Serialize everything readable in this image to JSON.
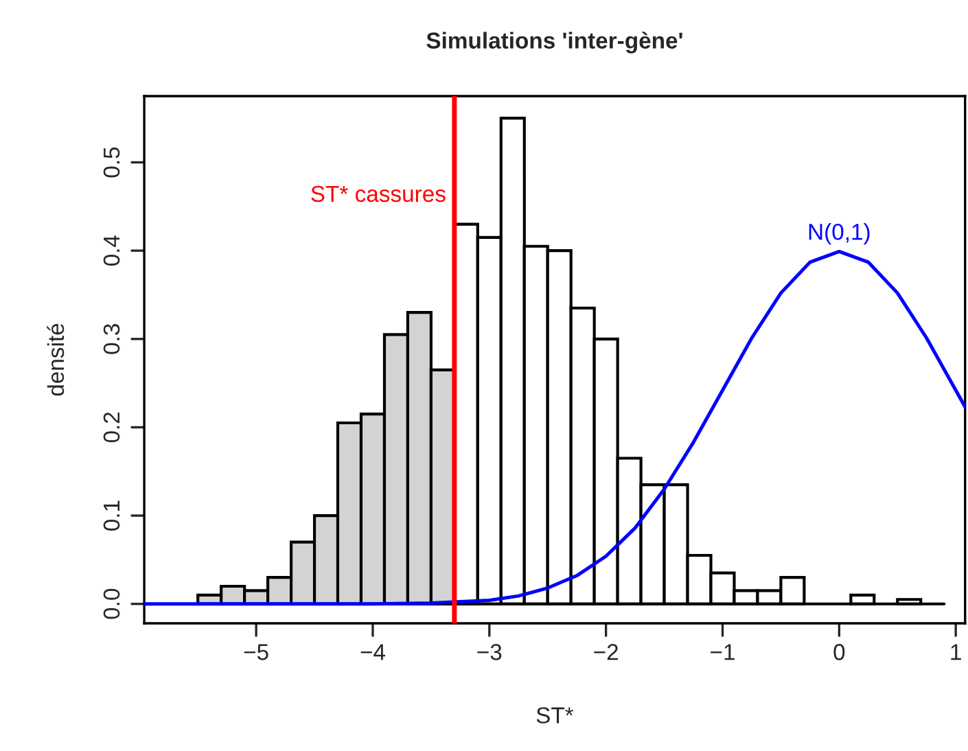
{
  "chart_data": {
    "type": "histogram",
    "title": "Simulations 'inter-gène'",
    "xlabel": "ST*",
    "ylabel": "densité",
    "series": [
      {
        "bins": [
          -5.5,
          -5.3,
          -5.1,
          -4.9,
          -4.7,
          -4.5,
          -4.3,
          -4.1,
          -3.9,
          -3.7,
          -3.5,
          -3.3,
          -3.1,
          -2.9,
          -2.7,
          -2.5,
          -2.3,
          -2.1,
          -1.9,
          -1.7,
          -1.5,
          -1.3,
          -1.1,
          -0.9,
          -0.7,
          -0.5,
          -0.3,
          -0.1,
          0.1,
          0.3,
          0.5,
          0.7,
          0.9
        ],
        "values": [
          0.01,
          0.02,
          0.015,
          0.03,
          0.07,
          0.1,
          0.205,
          0.215,
          0.305,
          0.33,
          0.265,
          0.43,
          0.415,
          0.55,
          0.405,
          0.4,
          0.335,
          0.3,
          0.165,
          0.135,
          0.135,
          0.055,
          0.035,
          0.015,
          0.015,
          0.03,
          0,
          0,
          0.01,
          0,
          0.005,
          0
        ],
        "colors": [
          "#d3d3d3",
          "#d3d3d3",
          "#d3d3d3",
          "#d3d3d3",
          "#d3d3d3",
          "#d3d3d3",
          "#d3d3d3",
          "#d3d3d3",
          "#d3d3d3",
          "#d3d3d3",
          "#d3d3d3",
          "#ffffff",
          "#ffffff",
          "#ffffff",
          "#ffffff",
          "#ffffff",
          "#ffffff",
          "#ffffff",
          "#ffffff",
          "#ffffff",
          "#ffffff",
          "#ffffff",
          "#ffffff",
          "#ffffff",
          "#ffffff",
          "#ffffff",
          null,
          null,
          "#ffffff",
          null,
          "#ffffff",
          null
        ]
      },
      {
        "type": "line",
        "name": "N(0,1)",
        "color": "#0000ff",
        "x": [
          -5.96,
          -5,
          -4,
          -3.5,
          -3,
          -2.75,
          -2.5,
          -2.25,
          -2,
          -1.75,
          -1.5,
          -1.25,
          -1,
          -0.75,
          -0.5,
          -0.25,
          0,
          0.25,
          0.5,
          0.75,
          1,
          1.08
        ],
        "values": [
          0,
          0,
          0,
          0.001,
          0.004,
          0.009,
          0.018,
          0.032,
          0.054,
          0.086,
          0.13,
          0.183,
          0.242,
          0.301,
          0.352,
          0.387,
          0.399,
          0.387,
          0.352,
          0.301,
          0.242,
          0.223
        ]
      }
    ],
    "ref_lines": [
      {
        "axis": "x",
        "value": -3.3,
        "label": "ST* cassures",
        "color": "#ff0000"
      }
    ],
    "xlim": [
      -5.96,
      1.08
    ],
    "ylim": [
      -0.022,
      0.575
    ],
    "xticks": [
      -5,
      -4,
      -3,
      -2,
      -1,
      0,
      1
    ],
    "yticks": [
      {
        "value": 0,
        "label": "0.0"
      },
      {
        "value": 0.1,
        "label": "0.1"
      },
      {
        "value": 0.2,
        "label": "0.2"
      },
      {
        "value": 0.3,
        "label": "0.3"
      },
      {
        "value": 0.4,
        "label": "0.4"
      },
      {
        "value": 0.5,
        "label": "0.5"
      }
    ]
  }
}
